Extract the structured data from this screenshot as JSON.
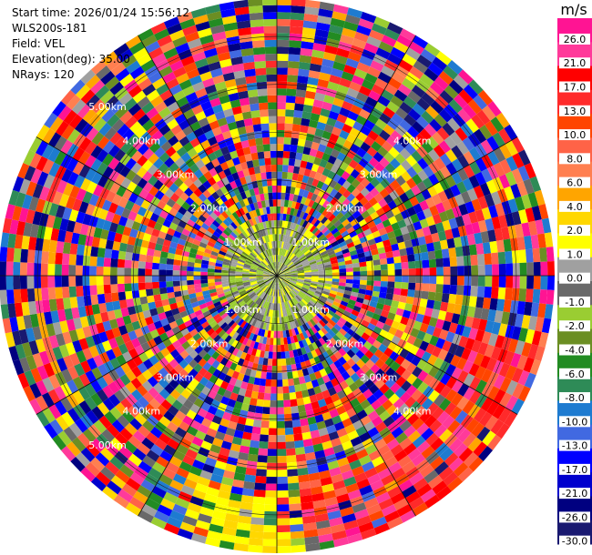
{
  "header": {
    "start_time": "Start time: 2026/01/24 15:56:12",
    "instrument": "WLS200s-181",
    "field": "Field: VEL",
    "elevation": "Elevation(deg): 35.00",
    "nrays": "NRays: 120"
  },
  "colorbar": {
    "unit": "m/s",
    "ticks": [
      "26.0",
      "21.0",
      "17.0",
      "13.0",
      "10.0",
      "8.0",
      "6.0",
      "4.0",
      "2.0",
      "1.0",
      "0.0",
      "-1.0",
      "-2.0",
      "-4.0",
      "-6.0",
      "-8.0",
      "-10.0",
      "-13.0",
      "-17.0",
      "-21.0",
      "-26.0",
      "-30.0"
    ],
    "colors": [
      "#ff1493",
      "#ff3a9a",
      "#ff0000",
      "#ff2a2a",
      "#ff4500",
      "#ff6347",
      "#ff7f50",
      "#ffa500",
      "#ffd700",
      "#ffff00",
      "#a0a0a0",
      "#696969",
      "#9acd32",
      "#6b8e23",
      "#228b22",
      "#2e8b57",
      "#1e7bd0",
      "#4169e1",
      "#0000ff",
      "#0000cd",
      "#000080",
      "#191970"
    ]
  },
  "chart_data": {
    "type": "heatmap",
    "projection": "polar (PPI scan)",
    "field": "VEL",
    "units": "m/s",
    "n_rays": 120,
    "elevation_deg": 35.0,
    "max_range_km": 5.8,
    "range_rings_km": [
      1.0,
      2.0,
      3.0,
      4.0,
      5.0
    ],
    "range_labels": [
      {
        "ring": 0,
        "text": "1.00km",
        "side": "upper-left"
      },
      {
        "ring": 0,
        "text": "1.00km",
        "side": "upper-right"
      },
      {
        "ring": 0,
        "text": "1.00km",
        "side": "lower-left"
      },
      {
        "ring": 0,
        "text": "1.00km",
        "side": "lower-right"
      },
      {
        "ring": 1,
        "text": "2.00km",
        "side": "upper-left"
      },
      {
        "ring": 1,
        "text": "2.00km",
        "side": "upper-right"
      },
      {
        "ring": 1,
        "text": "2.00km",
        "side": "lower-left"
      },
      {
        "ring": 1,
        "text": "2.00km",
        "side": "lower-right"
      },
      {
        "ring": 2,
        "text": "3.00km",
        "side": "upper-left"
      },
      {
        "ring": 2,
        "text": "3.00km",
        "side": "upper-right"
      },
      {
        "ring": 2,
        "text": "3.00km",
        "side": "lower-left"
      },
      {
        "ring": 2,
        "text": "3.00km",
        "side": "lower-right"
      },
      {
        "ring": 3,
        "text": "4.00km",
        "side": "upper-left"
      },
      {
        "ring": 3,
        "text": "4.00km",
        "side": "upper-right"
      },
      {
        "ring": 3,
        "text": "4.00km",
        "side": "lower-left"
      },
      {
        "ring": 3,
        "text": "4.00km",
        "side": "lower-right"
      },
      {
        "ring": 4,
        "text": "5.00km",
        "side": "upper-left"
      },
      {
        "ring": 4,
        "text": "5.00km",
        "side": "lower-left"
      }
    ],
    "value_range": [
      -30.0,
      26.0
    ]
  }
}
